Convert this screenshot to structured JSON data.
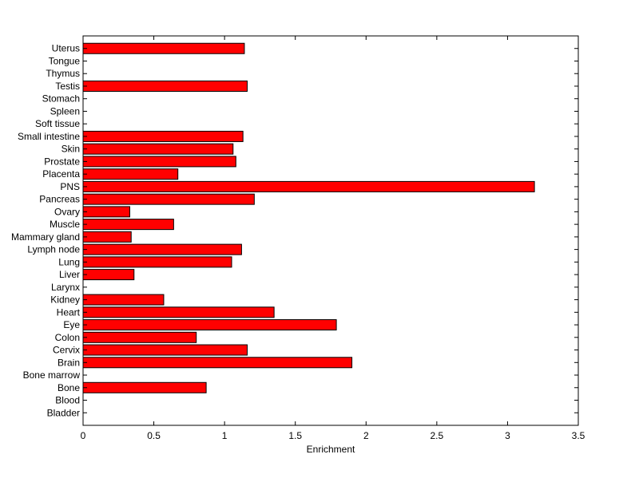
{
  "chart_data": {
    "type": "bar",
    "orientation": "horizontal",
    "title": "",
    "xlabel": "Enrichment",
    "ylabel": "",
    "xlim": [
      0,
      3.5
    ],
    "xticks": [
      0,
      0.5,
      1,
      1.5,
      2,
      2.5,
      3,
      3.5
    ],
    "xtick_labels": [
      "0",
      "0.5",
      "1",
      "1.5",
      "2",
      "2.5",
      "3",
      "3.5"
    ],
    "grid": false,
    "bar_color": "#ff0000",
    "bar_edge_color": "#000000",
    "categories": [
      "Bladder",
      "Blood",
      "Bone",
      "Bone marrow",
      "Brain",
      "Cervix",
      "Colon",
      "Eye",
      "Heart",
      "Kidney",
      "Larynx",
      "Liver",
      "Lung",
      "Lymph node",
      "Mammary gland",
      "Muscle",
      "Ovary",
      "Pancreas",
      "PNS",
      "Placenta",
      "Prostate",
      "Skin",
      "Small intestine",
      "Soft tissue",
      "Spleen",
      "Stomach",
      "Testis",
      "Thymus",
      "Tongue",
      "Uterus"
    ],
    "values": [
      0,
      0,
      0.87,
      0,
      1.9,
      1.16,
      0.8,
      1.79,
      1.35,
      0.57,
      0,
      0.36,
      1.05,
      1.12,
      0.34,
      0.64,
      0.33,
      1.21,
      3.19,
      0.67,
      1.08,
      1.06,
      1.13,
      0,
      0,
      0,
      1.16,
      0,
      0,
      1.14
    ]
  }
}
